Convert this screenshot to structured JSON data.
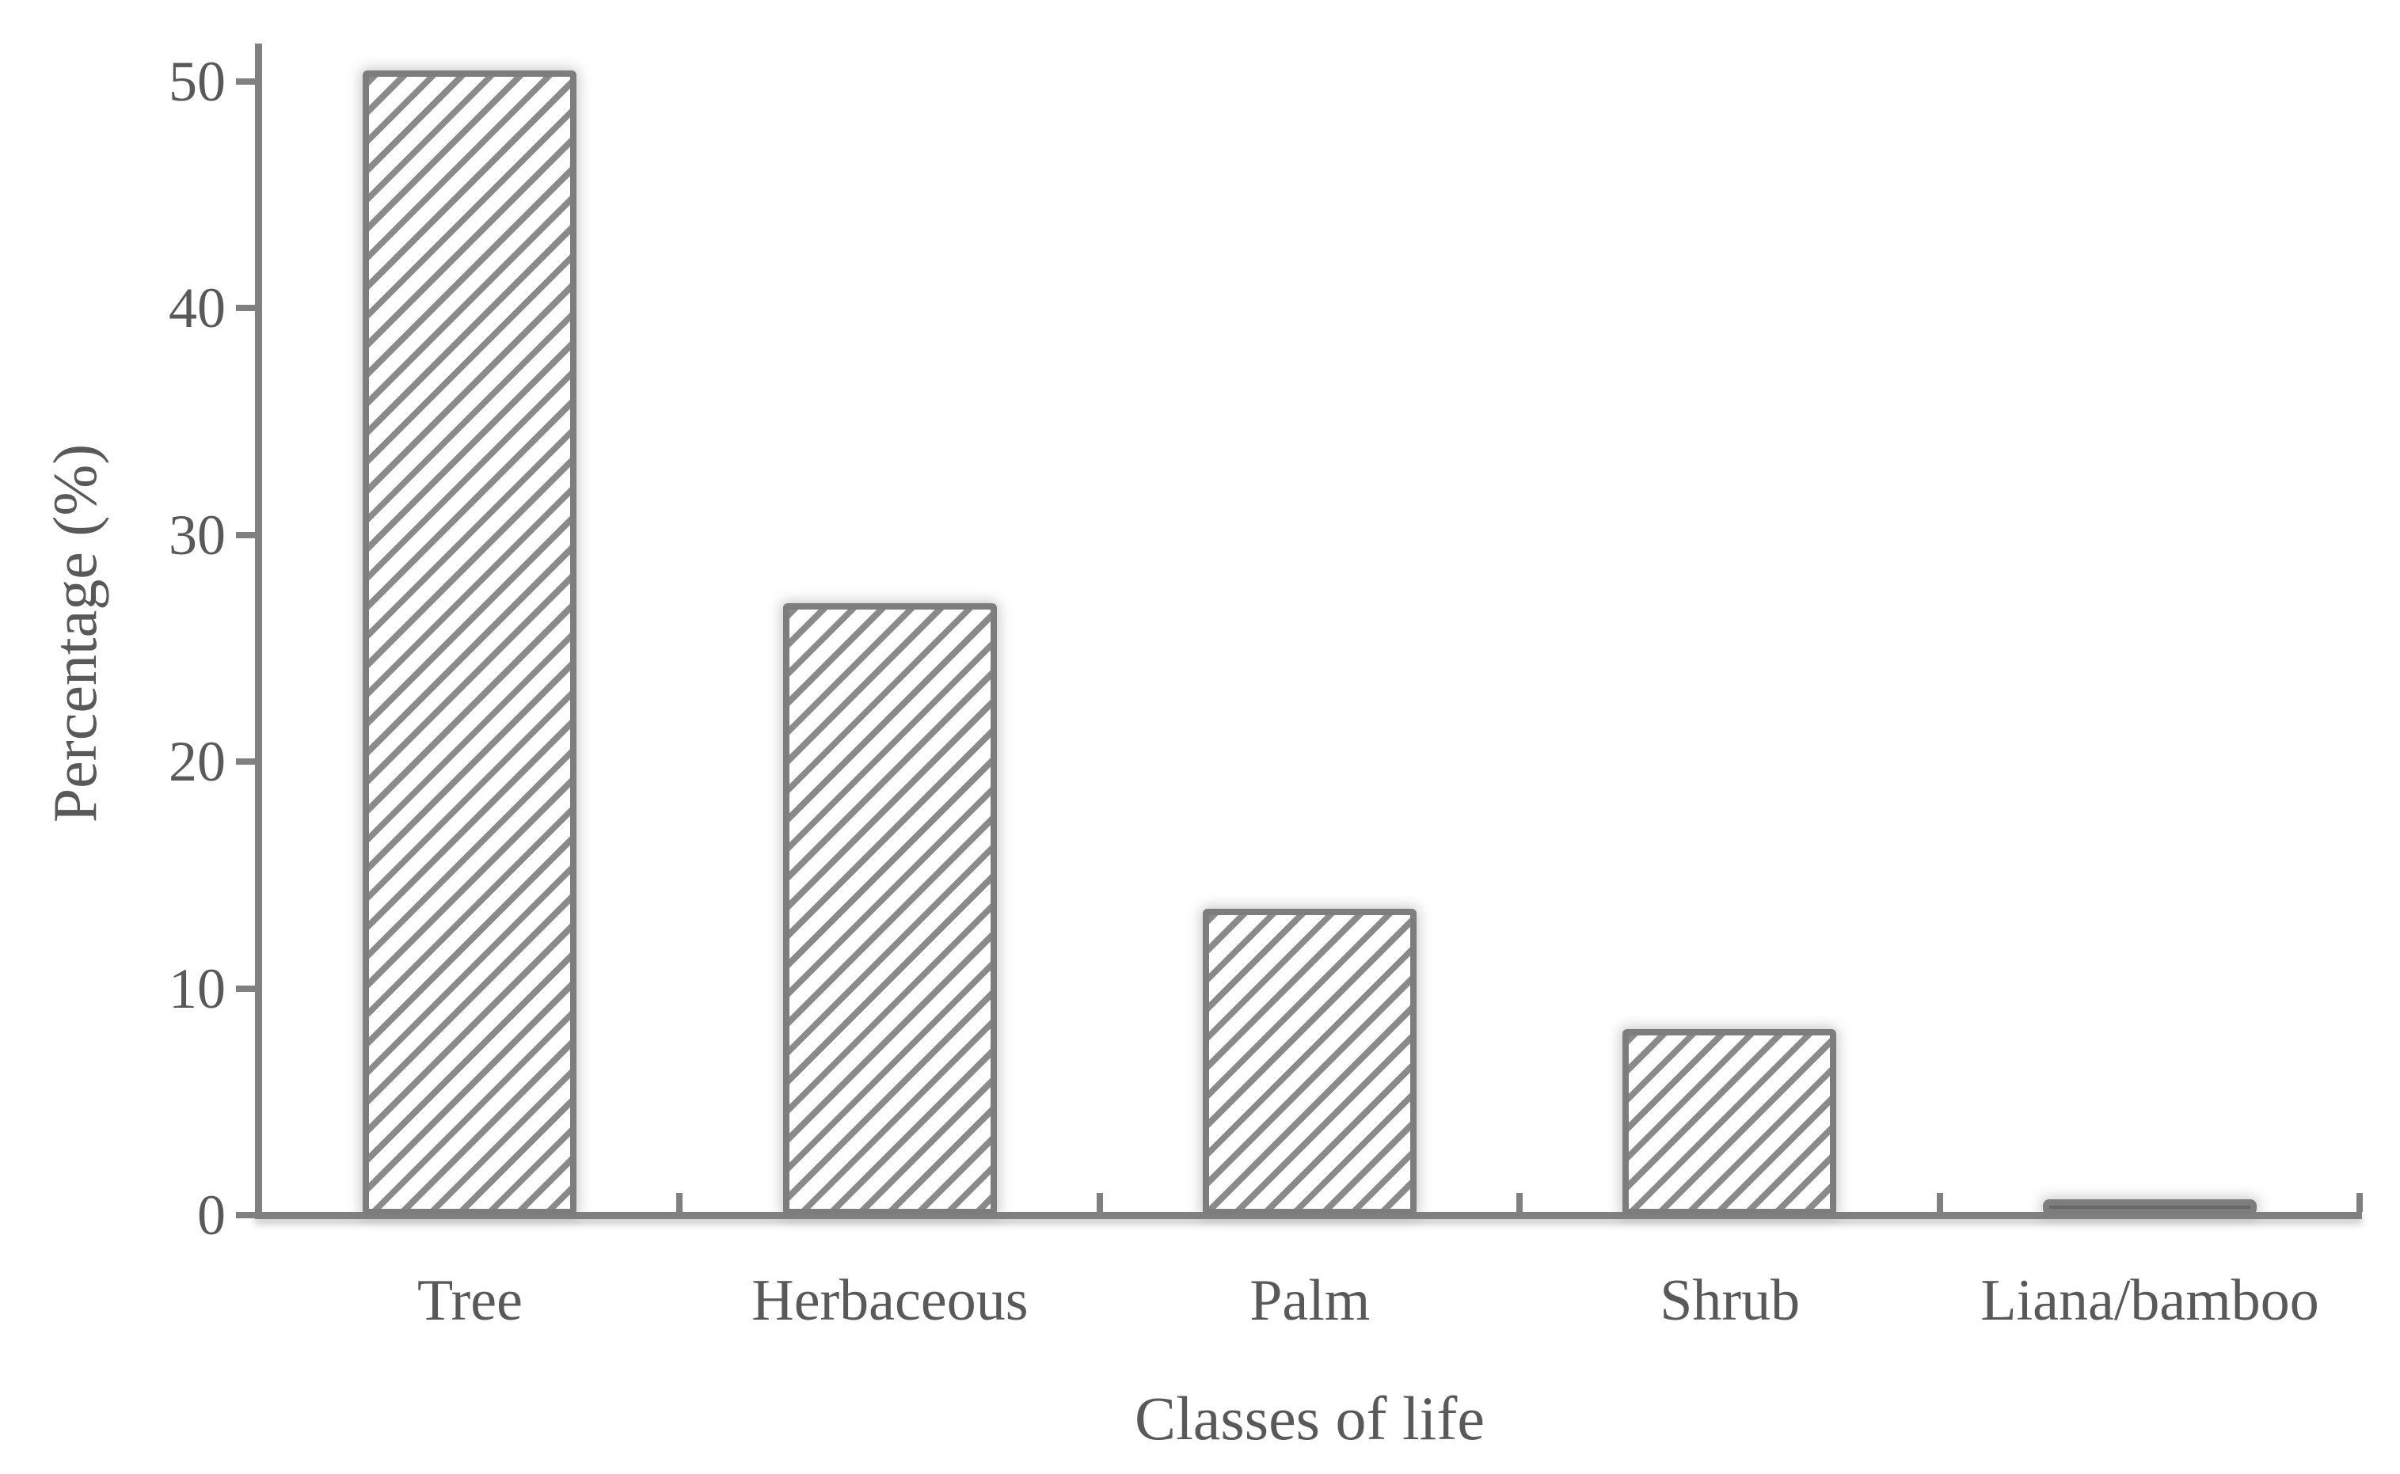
{
  "chart_data": {
    "type": "bar",
    "title": "",
    "xlabel": "Classes of life",
    "ylabel": "Percentage (%)",
    "categories": [
      "Tree",
      "Herbaceous",
      "Palm",
      "Shrub",
      "Liana/bamboo"
    ],
    "values": [
      50.5,
      27.0,
      13.5,
      8.2,
      0.7
    ],
    "yticks": [
      0,
      10,
      20,
      30,
      40,
      50
    ],
    "ylim": [
      0,
      52
    ],
    "grid": false,
    "legend_position": "none",
    "style": {
      "bar_fill": "diagonal-hatch",
      "hatch_color": "#8a8a8a",
      "bar_border_color": "#7d7d7d",
      "bar_background": "#ffffff",
      "axis_color": "#808080",
      "text_color": "#595959",
      "background": "#ffffff"
    }
  }
}
